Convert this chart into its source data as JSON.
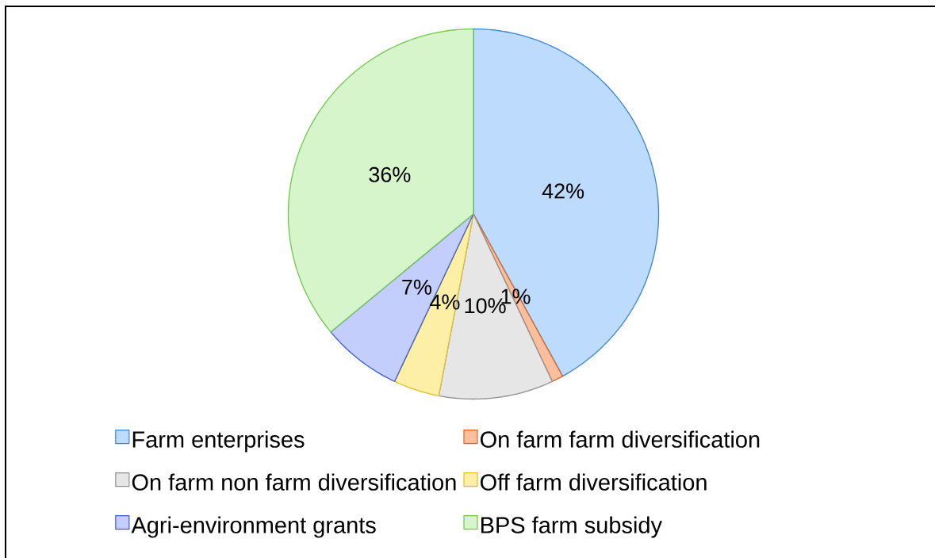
{
  "chart_data": {
    "type": "pie",
    "categories": [
      "Farm enterprises",
      "On farm farm diversification",
      "On farm non farm diversification",
      "Off farm diversification",
      "Agri-environment grants",
      "BPS farm subsidy"
    ],
    "values": [
      42,
      1,
      10,
      4,
      7,
      36
    ],
    "value_labels": [
      "42%",
      "1%",
      "10%",
      "4%",
      "7%",
      "36%"
    ],
    "colors": [
      "#bddbfc",
      "#fcbf9e",
      "#e6e6e6",
      "#feefa6",
      "#c3cefc",
      "#d6f5cb"
    ],
    "legend": "bottom"
  }
}
